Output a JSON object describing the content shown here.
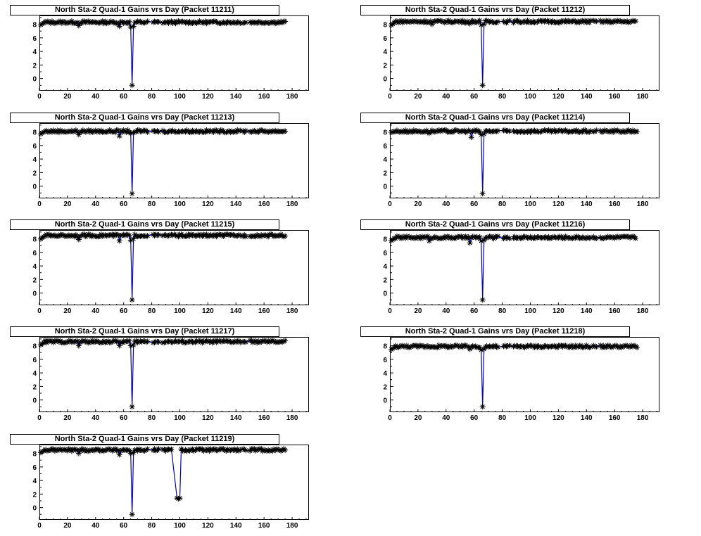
{
  "style": {
    "line_color": "#0000cc",
    "marker_color": "#000000",
    "marker": "asterisk"
  },
  "chart_data": [
    {
      "type": "line",
      "title": "North Sta-2 Quad-1 Gains vrs Day (Packet 11211)",
      "xlim": [
        0,
        192
      ],
      "ylim": [
        -1.8,
        9.3
      ],
      "grid": false,
      "x_ticks": [
        0,
        20,
        40,
        60,
        80,
        100,
        120,
        140,
        160,
        180
      ],
      "y_ticks": [
        0,
        2,
        4,
        6,
        8
      ],
      "baseline": 8.3,
      "start_value": 7.8,
      "dips": [
        {
          "x": 65,
          "y": 7.6
        },
        {
          "x": 66,
          "y": -1.0
        },
        {
          "x": 67,
          "y": 7.7
        },
        {
          "x": 28,
          "y": 7.8
        },
        {
          "x": 57,
          "y": 7.7
        }
      ],
      "x_range": [
        1,
        175
      ]
    },
    {
      "type": "line",
      "title": "North Sta-2 Quad-1 Gains vrs Day (Packet 11212)",
      "xlim": [
        0,
        192
      ],
      "ylim": [
        -1.8,
        9.3
      ],
      "grid": false,
      "x_ticks": [
        0,
        20,
        40,
        60,
        80,
        100,
        120,
        140,
        160,
        180
      ],
      "y_ticks": [
        0,
        2,
        4,
        6,
        8
      ],
      "baseline": 8.4,
      "start_value": 7.7,
      "dips": [
        {
          "x": 65,
          "y": 7.9
        },
        {
          "x": 66,
          "y": -1.0
        },
        {
          "x": 67,
          "y": 8.0
        },
        {
          "x": 30,
          "y": 8.0
        },
        {
          "x": 57,
          "y": 8.1
        }
      ],
      "x_range": [
        1,
        175
      ]
    },
    {
      "type": "line",
      "title": "North Sta-2 Quad-1 Gains vrs Day (Packet 11213)",
      "xlim": [
        0,
        192
      ],
      "ylim": [
        -1.8,
        9.3
      ],
      "grid": false,
      "x_ticks": [
        0,
        20,
        40,
        60,
        80,
        100,
        120,
        140,
        160,
        180
      ],
      "y_ticks": [
        0,
        2,
        4,
        6,
        8
      ],
      "baseline": 8.1,
      "start_value": 7.6,
      "dips": [
        {
          "x": 65,
          "y": 7.8
        },
        {
          "x": 66,
          "y": -1.1
        },
        {
          "x": 67,
          "y": 7.9
        },
        {
          "x": 28,
          "y": 7.6
        },
        {
          "x": 57,
          "y": 7.4
        }
      ],
      "x_range": [
        1,
        175
      ]
    },
    {
      "type": "line",
      "title": "North Sta-2 Quad-1 Gains vrs Day (Packet 11214)",
      "xlim": [
        0,
        192
      ],
      "ylim": [
        -1.8,
        9.3
      ],
      "grid": false,
      "x_ticks": [
        0,
        20,
        40,
        60,
        80,
        100,
        120,
        140,
        160,
        180
      ],
      "y_ticks": [
        0,
        2,
        4,
        6,
        8
      ],
      "baseline": 8.1,
      "start_value": 7.9,
      "dips": [
        {
          "x": 58,
          "y": 7.2
        },
        {
          "x": 65,
          "y": 7.6
        },
        {
          "x": 66,
          "y": -1.1
        },
        {
          "x": 67,
          "y": 7.7
        },
        {
          "x": 28,
          "y": 7.8
        }
      ],
      "x_range": [
        1,
        176
      ]
    },
    {
      "type": "line",
      "title": "North Sta-2 Quad-1 Gains vrs Day (Packet 11215)",
      "xlim": [
        0,
        192
      ],
      "ylim": [
        -1.8,
        9.3
      ],
      "grid": false,
      "x_ticks": [
        0,
        20,
        40,
        60,
        80,
        100,
        120,
        140,
        160,
        180
      ],
      "y_ticks": [
        0,
        2,
        4,
        6,
        8
      ],
      "baseline": 8.5,
      "start_value": 7.8,
      "dips": [
        {
          "x": 65,
          "y": 7.8
        },
        {
          "x": 66,
          "y": -1.0
        },
        {
          "x": 67,
          "y": 8.0
        },
        {
          "x": 28,
          "y": 7.9
        },
        {
          "x": 57,
          "y": 7.7
        }
      ],
      "x_range": [
        1,
        175
      ]
    },
    {
      "type": "line",
      "title": "North Sta-2 Quad-1 Gains vrs Day (Packet 11216)",
      "xlim": [
        0,
        192
      ],
      "ylim": [
        -1.8,
        9.3
      ],
      "grid": false,
      "x_ticks": [
        0,
        20,
        40,
        60,
        80,
        100,
        120,
        140,
        160,
        180
      ],
      "y_ticks": [
        0,
        2,
        4,
        6,
        8
      ],
      "baseline": 8.2,
      "start_value": 7.6,
      "dips": [
        {
          "x": 57,
          "y": 7.4
        },
        {
          "x": 65,
          "y": 7.7
        },
        {
          "x": 66,
          "y": -1.0
        },
        {
          "x": 67,
          "y": 7.8
        },
        {
          "x": 28,
          "y": 7.7
        }
      ],
      "x_range": [
        1,
        175
      ]
    },
    {
      "type": "line",
      "title": "North Sta-2 Quad-1 Gains vrs Day (Packet 11217)",
      "xlim": [
        0,
        192
      ],
      "ylim": [
        -1.8,
        9.3
      ],
      "grid": false,
      "x_ticks": [
        0,
        20,
        40,
        60,
        80,
        100,
        120,
        140,
        160,
        180
      ],
      "y_ticks": [
        0,
        2,
        4,
        6,
        8
      ],
      "baseline": 8.6,
      "start_value": 8.0,
      "dips": [
        {
          "x": 57,
          "y": 8.0
        },
        {
          "x": 65,
          "y": 8.0
        },
        {
          "x": 66,
          "y": -1.0
        },
        {
          "x": 67,
          "y": 8.1
        },
        {
          "x": 28,
          "y": 8.0
        }
      ],
      "x_range": [
        1,
        175
      ]
    },
    {
      "type": "line",
      "title": "North Sta-2 Quad-1 Gains vrs Day (Packet 11218)",
      "xlim": [
        0,
        192
      ],
      "ylim": [
        -1.8,
        9.3
      ],
      "grid": false,
      "x_ticks": [
        0,
        20,
        40,
        60,
        80,
        100,
        120,
        140,
        160,
        180
      ],
      "y_ticks": [
        0,
        2,
        4,
        6,
        8
      ],
      "baseline": 7.9,
      "start_value": 7.3,
      "dips": [
        {
          "x": 57,
          "y": 7.5
        },
        {
          "x": 65,
          "y": 7.4
        },
        {
          "x": 66,
          "y": -1.0
        },
        {
          "x": 67,
          "y": 7.5
        }
      ],
      "x_range": [
        1,
        176
      ]
    },
    {
      "type": "line",
      "title": "North Sta-2 Quad-1 Gains vrs Day (Packet 11219)",
      "xlim": [
        0,
        192
      ],
      "ylim": [
        -1.8,
        9.3
      ],
      "grid": false,
      "x_ticks": [
        0,
        20,
        40,
        60,
        80,
        100,
        120,
        140,
        160,
        180
      ],
      "y_ticks": [
        0,
        2,
        4,
        6,
        8
      ],
      "baseline": 8.5,
      "start_value": 8.0,
      "dips": [
        {
          "x": 57,
          "y": 7.8
        },
        {
          "x": 65,
          "y": 8.0
        },
        {
          "x": 66,
          "y": -1.0
        },
        {
          "x": 67,
          "y": 8.1
        },
        {
          "x": 28,
          "y": 8.0
        },
        {
          "x": 98,
          "y": 1.4
        },
        {
          "x": 99,
          "y": 1.3
        },
        {
          "x": 100,
          "y": 1.4
        }
      ],
      "gap": [
        94,
        100
      ],
      "x_range": [
        1,
        175
      ]
    }
  ]
}
